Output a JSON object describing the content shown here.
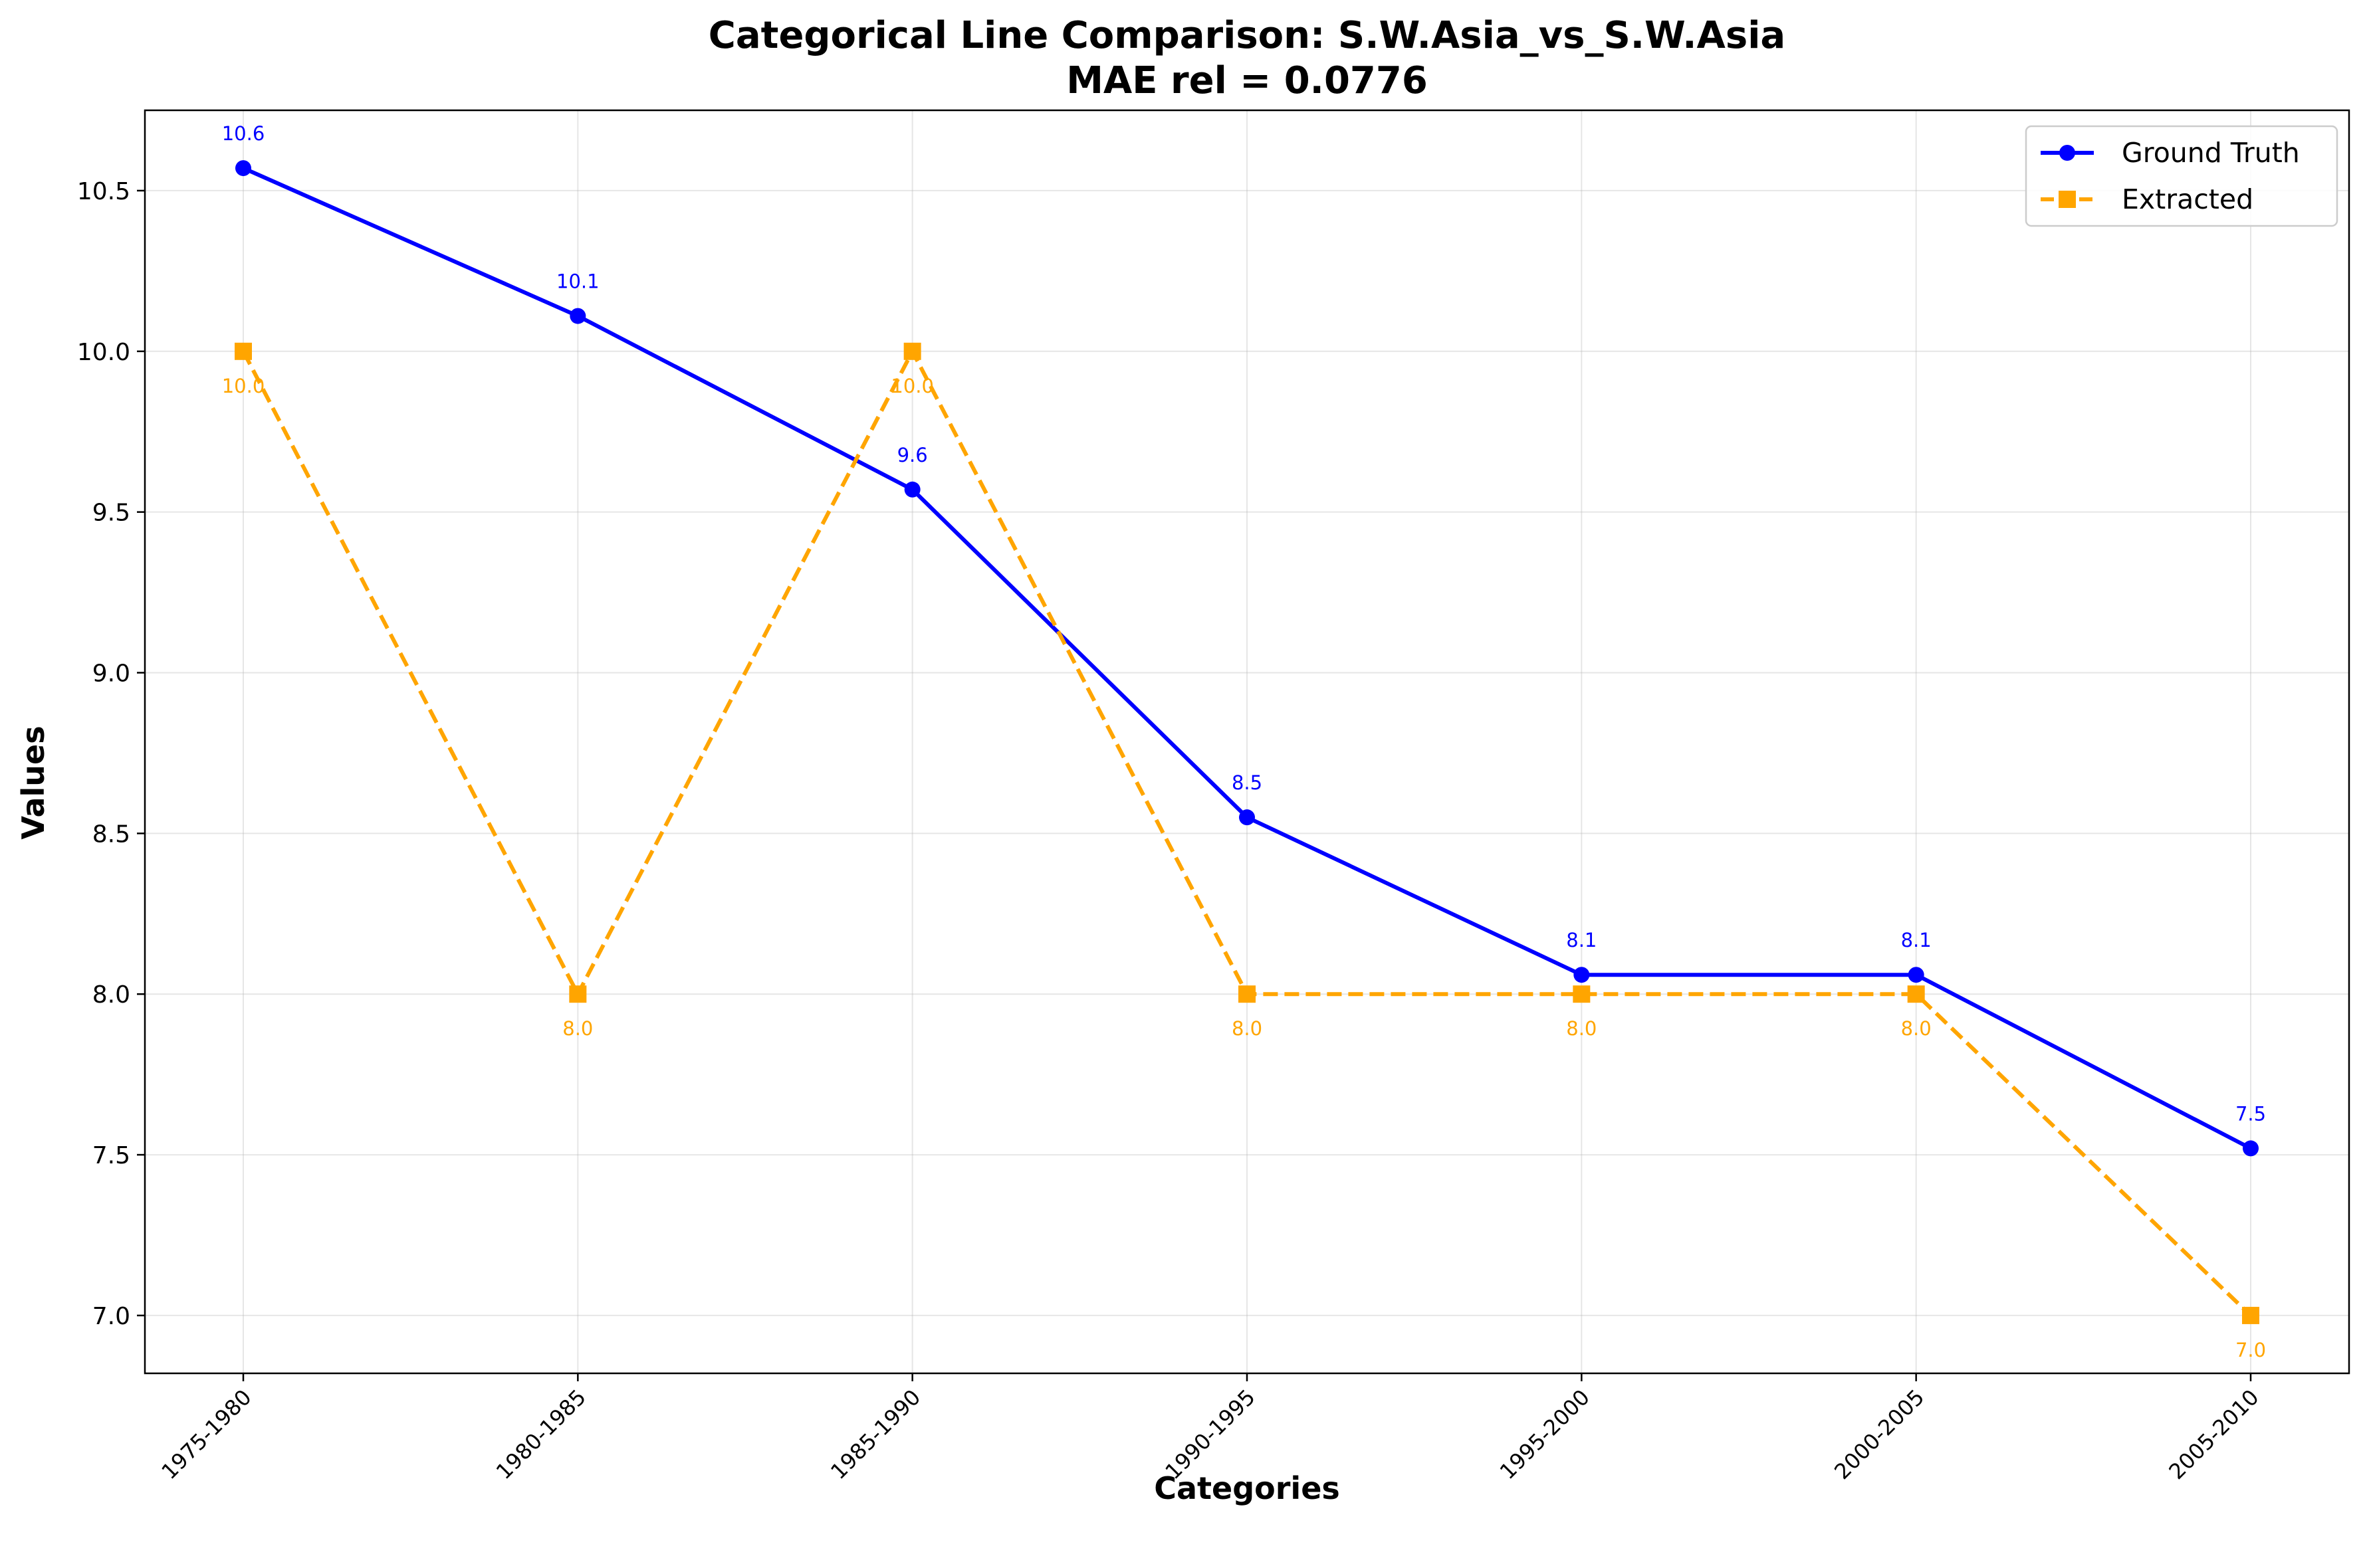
{
  "chart_data": {
    "type": "line",
    "title": "Categorical Line Comparison: S.W.Asia_vs_S.W.Asia",
    "subtitle": "MAE rel = 0.0776",
    "xlabel": "Categories",
    "ylabel": "Values",
    "categories": [
      "1975-1980",
      "1980-1985",
      "1985-1990",
      "1990-1995",
      "1995-2000",
      "2000-2005",
      "2005-2010"
    ],
    "ylim": [
      6.82,
      10.75
    ],
    "yticks": [
      "7.0",
      "7.5",
      "8.0",
      "8.5",
      "9.0",
      "9.5",
      "10.0",
      "10.5"
    ],
    "grid": true,
    "legend_position": "top-right",
    "series": [
      {
        "name": "Ground Truth",
        "color": "#0000ff",
        "line_style": "solid",
        "marker": "circle",
        "values": [
          10.57,
          10.11,
          9.57,
          8.55,
          8.06,
          8.06,
          7.52
        ],
        "labels": [
          "10.6",
          "10.1",
          "9.6",
          "8.5",
          "8.1",
          "8.1",
          "7.5"
        ]
      },
      {
        "name": "Extracted",
        "color": "#ffa500",
        "line_style": "dashed",
        "marker": "square",
        "values": [
          10.0,
          8.0,
          10.0,
          8.0,
          8.0,
          8.0,
          7.0
        ],
        "labels": [
          "10.0",
          "8.0",
          "10.0",
          "8.0",
          "8.0",
          "8.0",
          "7.0"
        ]
      }
    ]
  }
}
